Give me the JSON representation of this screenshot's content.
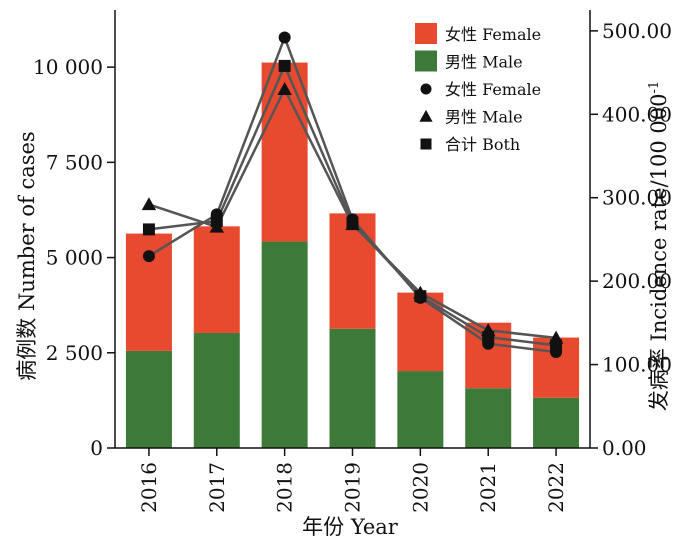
{
  "chart_data": {
    "type": "bar",
    "categories": [
      "2016",
      "2017",
      "2018",
      "2019",
      "2020",
      "2021",
      "2022"
    ],
    "bar_series": [
      {
        "name": "男性 Male",
        "color": "#3d7a3a",
        "values": [
          2550,
          3020,
          5420,
          3130,
          2020,
          1570,
          1320
        ]
      },
      {
        "name": "女性 Female",
        "color": "#e84a2f",
        "values": [
          3080,
          2800,
          4700,
          3030,
          2060,
          1720,
          1580
        ]
      }
    ],
    "line_series": [
      {
        "name": "女性 Female",
        "marker": "circle",
        "values": [
          230,
          280,
          492,
          274,
          180,
          125,
          115
        ]
      },
      {
        "name": "男性 Male",
        "marker": "triangle",
        "values": [
          292,
          265,
          430,
          268,
          186,
          141,
          132
        ]
      },
      {
        "name": "合计 Both",
        "marker": "square",
        "values": [
          262,
          272,
          458,
          270,
          182,
          133,
          123
        ]
      }
    ],
    "line_color": "#555555",
    "xlabel": "年份 Year",
    "ylabel": "病例数 Number of cases",
    "y2label": "发病率 Incidence rate/100 000",
    "y2label_superscript": "-1",
    "ylim": [
      0,
      11500
    ],
    "y2lim": [
      0,
      525
    ],
    "yticks": [
      0,
      2500,
      5000,
      7500,
      10000
    ],
    "ytick_labels": [
      "0",
      "2 500",
      "5 000",
      "7 500",
      "10 000"
    ],
    "y2ticks": [
      0,
      100,
      200,
      300,
      400,
      500
    ],
    "y2tick_labels": [
      "0.00",
      "100.00",
      "200.00",
      "300.00",
      "400.00",
      "500.00"
    ],
    "legend_position": "top-right",
    "legend": [
      {
        "label": "女性 Female",
        "kind": "rect",
        "color": "#e84a2f"
      },
      {
        "label": "男性 Male",
        "kind": "rect",
        "color": "#3d7a3a"
      },
      {
        "label": "女性 Female",
        "kind": "circle",
        "color": "#111111"
      },
      {
        "label": "男性 Male",
        "kind": "triangle",
        "color": "#111111"
      },
      {
        "label": "合计 Both",
        "kind": "square",
        "color": "#111111"
      }
    ]
  }
}
